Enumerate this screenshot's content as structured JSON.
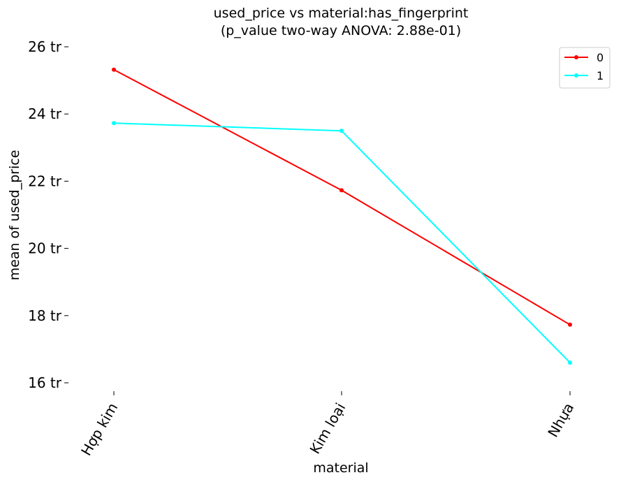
{
  "chart_data": {
    "type": "line",
    "title": "used_price vs material:has_fingerprint",
    "subtitle": "(p_value two-way ANOVA: 2.88e-01)",
    "xlabel": "material",
    "ylabel": "mean of used_price",
    "categories": [
      "Hợp kim",
      "Kim loại",
      "Nhựa"
    ],
    "y_ticks": [
      16,
      18,
      20,
      22,
      24,
      26
    ],
    "y_tick_labels": [
      "16 tr",
      "18 tr",
      "20 tr",
      "22 tr",
      "24 tr",
      "26 tr"
    ],
    "ylim": [
      16,
      26
    ],
    "grid": false,
    "legend_position": "top-right",
    "series": [
      {
        "name": "0",
        "color": "#ff0000",
        "values": [
          25.32,
          21.73,
          17.73
        ]
      },
      {
        "name": "1",
        "color": "#00ffff",
        "values": [
          23.73,
          23.5,
          16.6
        ]
      }
    ]
  }
}
